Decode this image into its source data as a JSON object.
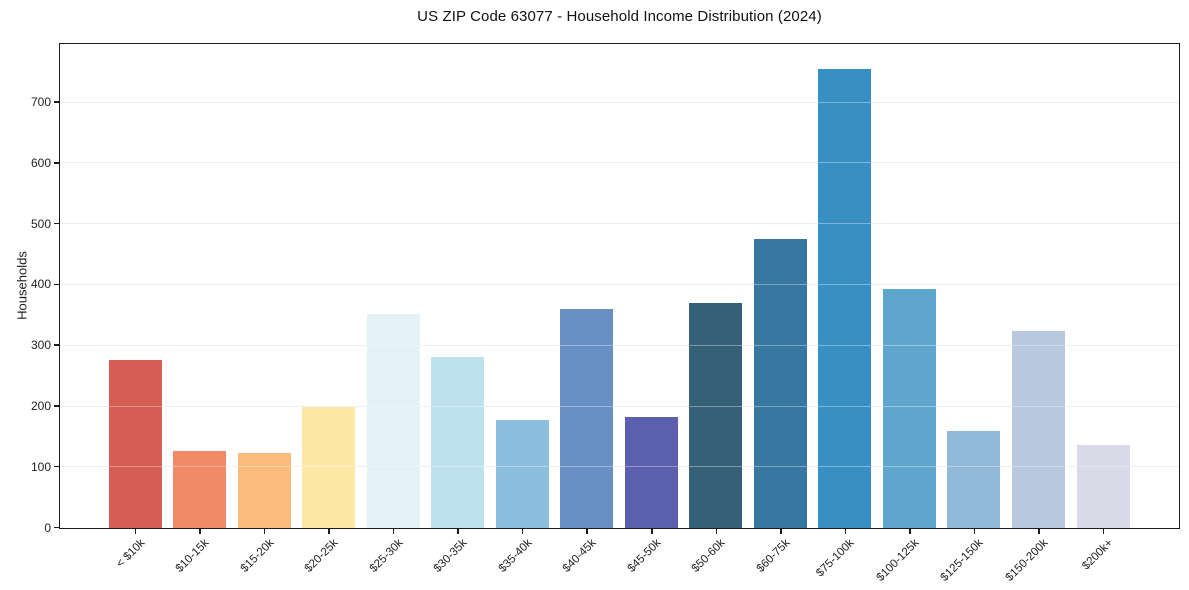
{
  "chart_data": {
    "type": "bar",
    "title": "US ZIP Code 63077 - Household Income Distribution (2024)",
    "xlabel": "",
    "ylabel": "Households",
    "categories": [
      "< $10k",
      "$10-15k",
      "$15-20k",
      "$20-25k",
      "$25-30k",
      "$30-35k",
      "$35-40k",
      "$40-45k",
      "$45-50k",
      "$50-60k",
      "$60-75k",
      "$75-100k",
      "$100-125k",
      "$125-150k",
      "$150-200k",
      "$200k+"
    ],
    "values": [
      276,
      126,
      123,
      200,
      352,
      282,
      177,
      360,
      183,
      371,
      476,
      755,
      394,
      159,
      325,
      137
    ],
    "bar_colors": [
      "#d65d53",
      "#f28a67",
      "#fabb7d",
      "#fde8a7",
      "#e4f1f7",
      "#bde2ee",
      "#8cbedd",
      "#6890c5",
      "#5c5fae",
      "#365f78",
      "#3878a0",
      "#388fc4",
      "#5fa6cd",
      "#92b8d8",
      "#b7c9df",
      "#d8dae8"
    ],
    "y_ticks": [
      0,
      100,
      200,
      300,
      400,
      500,
      600,
      700
    ],
    "ylim": [
      0,
      795
    ],
    "grid": "horizontal-light-over-bars",
    "legend": "none",
    "background": "#ffffff",
    "spine_color": "#1a1a1a"
  }
}
